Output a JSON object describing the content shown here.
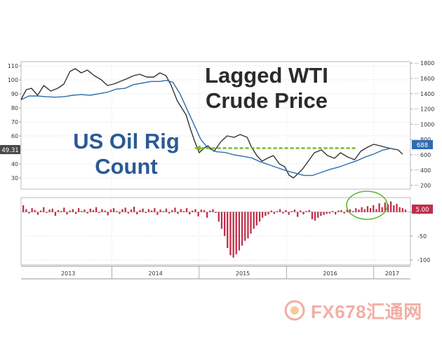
{
  "chart_data": [
    {
      "type": "line",
      "panel": "top",
      "title": "Lagged WTI Crude Price",
      "annotation": "US Oil Rig Count",
      "x_ticks": [
        "2013",
        "2014",
        "2015",
        "2016",
        "2017"
      ],
      "left_axis": {
        "ticks": [
          "110",
          "100",
          "90",
          "80",
          "70",
          "60",
          "50",
          "40",
          "30"
        ],
        "ylim": [
          22,
          113
        ]
      },
      "right_axis": {
        "ticks": [
          "1800",
          "1600",
          "1400",
          "1200",
          "1000",
          "800",
          "600",
          "400",
          "200"
        ],
        "ylim": [
          150,
          1820
        ]
      },
      "series": [
        {
          "name": "Lagged WTI Crude Price",
          "axis": "left",
          "color": "#333333",
          "x": [
            2012.96,
            2013.02,
            2013.08,
            2013.15,
            2013.22,
            2013.3,
            2013.38,
            2013.45,
            2013.52,
            2013.58,
            2013.65,
            2013.72,
            2013.8,
            2013.88,
            2013.95,
            2014.02,
            2014.1,
            2014.18,
            2014.25,
            2014.32,
            2014.4,
            2014.48,
            2014.55,
            2014.62,
            2014.68,
            2014.75,
            2014.8,
            2014.85,
            2014.9,
            2014.95,
            2015.0,
            2015.05,
            2015.1,
            2015.17,
            2015.25,
            2015.32,
            2015.4,
            2015.47,
            2015.55,
            2015.6,
            2015.66,
            2015.72,
            2015.78,
            2015.85,
            2015.92,
            2015.98,
            2016.03,
            2016.08,
            2016.13,
            2016.18,
            2016.25,
            2016.32,
            2016.4,
            2016.47,
            2016.55,
            2016.62,
            2016.7,
            2016.78,
            2016.85,
            2016.93,
            2017.0,
            2017.07,
            2017.13,
            2017.2,
            2017.28,
            2017.33
          ],
          "values": [
            86,
            93,
            94,
            89,
            96,
            92,
            94,
            97,
            106,
            108,
            105,
            107,
            103,
            100,
            96,
            97,
            99,
            101,
            103,
            104,
            102,
            102,
            105,
            103,
            96,
            85,
            80,
            75,
            65,
            56,
            48,
            51,
            53,
            49,
            56,
            60,
            59,
            61,
            59,
            52,
            46,
            42,
            44,
            46,
            40,
            38,
            32,
            30,
            33,
            36,
            42,
            48,
            50,
            46,
            44,
            48,
            45,
            43,
            49,
            52,
            54,
            53,
            52,
            51,
            50,
            47
          ]
        },
        {
          "name": "US Oil Rig Count",
          "axis": "right",
          "color": "#2f6bb3",
          "x": [
            2012.96,
            2013.05,
            2013.15,
            2013.25,
            2013.35,
            2013.45,
            2013.55,
            2013.65,
            2013.75,
            2013.85,
            2013.95,
            2014.05,
            2014.15,
            2014.25,
            2014.35,
            2014.45,
            2014.55,
            2014.62,
            2014.7,
            2014.78,
            2014.86,
            2014.94,
            2015.02,
            2015.1,
            2015.2,
            2015.3,
            2015.4,
            2015.5,
            2015.6,
            2015.7,
            2015.8,
            2015.9,
            2016.0,
            2016.1,
            2016.2,
            2016.3,
            2016.4,
            2016.5,
            2016.6,
            2016.7,
            2016.8,
            2016.9,
            2017.0,
            2017.1,
            2017.2
          ],
          "values": [
            1320,
            1370,
            1370,
            1360,
            1355,
            1360,
            1380,
            1390,
            1380,
            1400,
            1420,
            1460,
            1470,
            1520,
            1540,
            1560,
            1560,
            1575,
            1550,
            1400,
            1200,
            1000,
            800,
            690,
            640,
            630,
            600,
            580,
            560,
            510,
            470,
            430,
            390,
            360,
            330,
            330,
            370,
            410,
            440,
            480,
            520,
            570,
            610,
            660,
            688
          ]
        },
        {
          "name": "guide",
          "style": "dashed",
          "color": "#79b61e",
          "axis": "right",
          "x": [
            2014.95,
            2016.8
          ],
          "values": [
            688,
            688
          ]
        }
      ],
      "current_value_labels": [
        {
          "text": "49.31",
          "axis": "left",
          "value": 49.31,
          "color": "#4a4a4a"
        },
        {
          "text": "688",
          "axis": "right",
          "value": 688,
          "color": "#2f6bb3"
        }
      ]
    },
    {
      "type": "bar",
      "panel": "bottom",
      "y_ticks": [
        "0",
        "-50",
        "-100"
      ],
      "ylim": [
        -110,
        30
      ],
      "color": "#c0304a",
      "current_value_label": {
        "text": "5.00",
        "value": 5,
        "color": "#c0304a"
      },
      "highlight": "circle",
      "values": [
        14,
        6,
        -3,
        8,
        4,
        -6,
        3,
        10,
        -2,
        5,
        7,
        -8,
        4,
        2,
        9,
        -5,
        3,
        6,
        -4,
        8,
        2,
        5,
        -3,
        7,
        4,
        10,
        -2,
        6,
        3,
        -7,
        5,
        8,
        2,
        -4,
        6,
        9,
        -3,
        5,
        11,
        -5,
        4,
        7,
        -2,
        6,
        3,
        8,
        -6,
        5,
        2,
        7,
        -3,
        4,
        9,
        -4,
        6,
        2,
        8,
        -5,
        3,
        6,
        -9,
        5,
        4,
        -12,
        3,
        6,
        -2,
        -20,
        -35,
        -50,
        -75,
        -90,
        -95,
        -88,
        -80,
        -70,
        -60,
        -55,
        -45,
        -35,
        -28,
        -20,
        -12,
        -8,
        -5,
        3,
        -4,
        2,
        6,
        -3,
        4,
        -6,
        2,
        5,
        -10,
        3,
        -5,
        2,
        4,
        -15,
        -18,
        -12,
        -8,
        -6,
        -4,
        -3,
        2,
        -5,
        3,
        4,
        -3,
        5,
        6,
        2,
        8,
        5,
        10,
        6,
        12,
        8,
        14,
        6,
        18,
        10,
        20,
        16,
        22,
        14,
        17,
        10,
        8,
        5
      ]
    }
  ],
  "watermark": {
    "text": "FX678汇通网"
  }
}
